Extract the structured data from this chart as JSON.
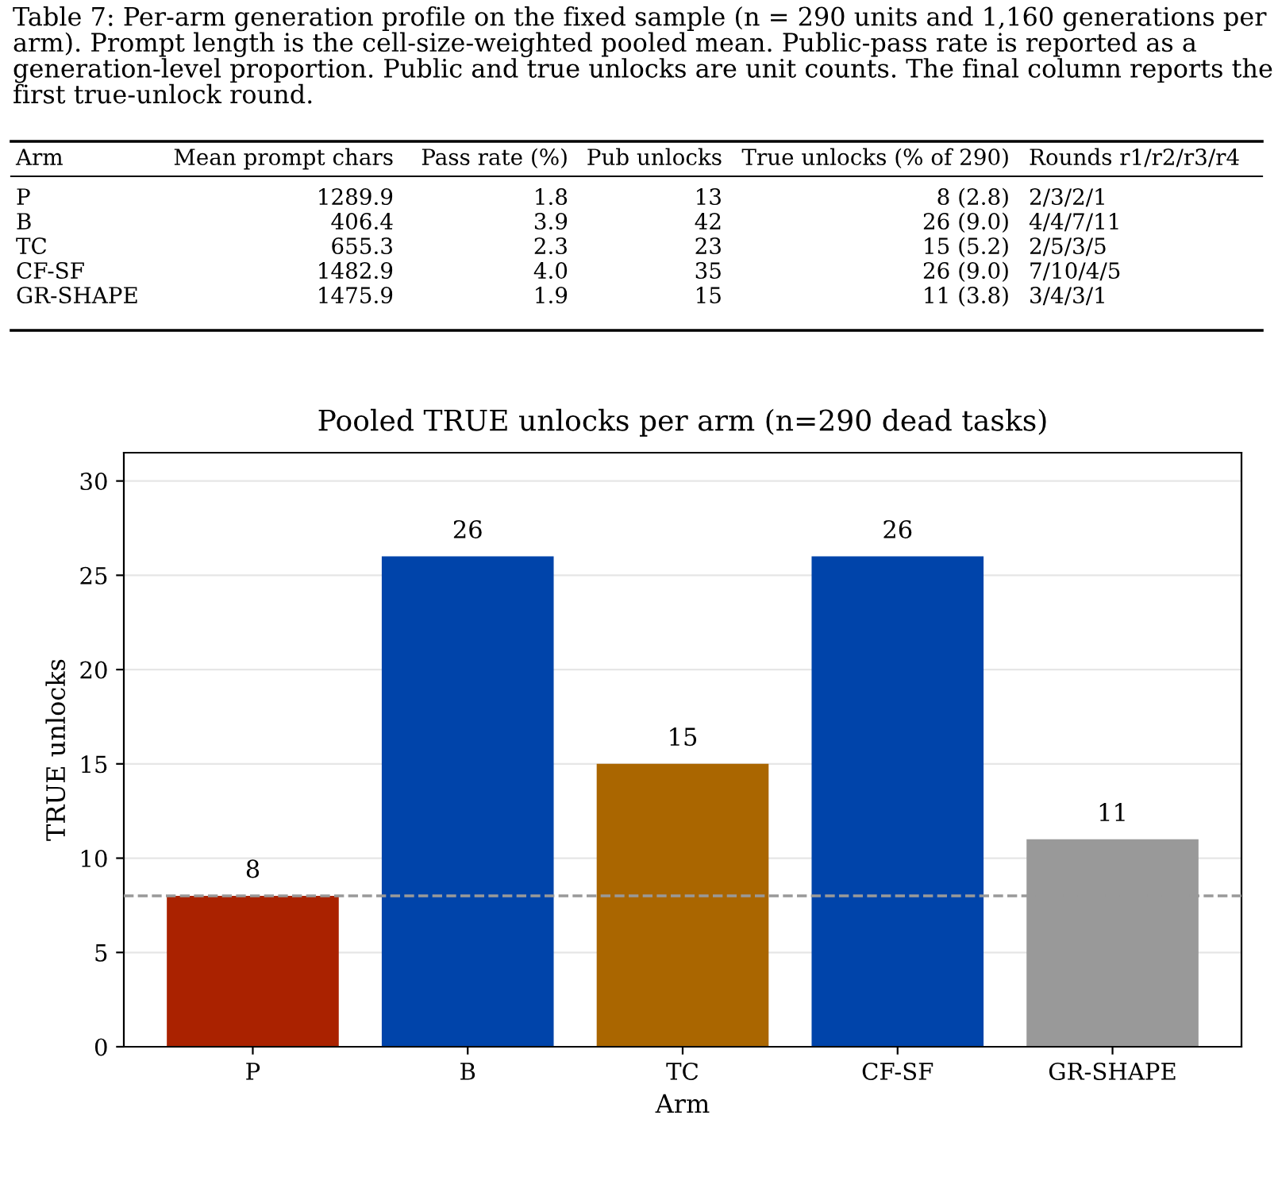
{
  "chart_data": [
    {
      "type": "other",
      "title": "Table 7: Per-arm generation profile on the fixed sample (n = 290 units and 1,160 generations per arm). Prompt length is the cell-size-weighted pooled mean. Public-pass rate is reported as a generation-level proportion. Public and true unlocks are unit counts. The final column reports the first true-unlock round.",
      "categories": [
        "Arm",
        "Mean prompt chars",
        "Pass rate (%)",
        "Pub unlocks",
        "True unlocks (% of 290)",
        "Rounds r1/r2/r3/r4"
      ],
      "cell_labels": [
        [
          "P",
          "1289.9",
          "1.8",
          "13",
          "8 (2.8)",
          "2/3/2/1"
        ],
        [
          "B",
          "406.4",
          "3.9",
          "42",
          "26 (9.0)",
          "4/4/7/11"
        ],
        [
          "TC",
          "655.3",
          "2.3",
          "23",
          "15 (5.2)",
          "2/5/3/5"
        ],
        [
          "CF-SF",
          "1482.9",
          "4.0",
          "35",
          "26 (9.0)",
          "7/10/4/5"
        ],
        [
          "GR-SHAPE",
          "1475.9",
          "1.9",
          "15",
          "11 (3.8)",
          "3/4/3/1"
        ]
      ]
    },
    {
      "type": "bar",
      "title": "Pooled TRUE unlocks per arm (n=290 dead tasks)",
      "xlabel": "Arm",
      "ylabel": "TRUE unlocks",
      "categories": [
        "P",
        "B",
        "TC",
        "CF-SF",
        "GR-SHAPE"
      ],
      "values": [
        8,
        26,
        15,
        26,
        11
      ],
      "colors": [
        "#aa2200",
        "#0044aa",
        "#aa6600",
        "#0044aa",
        "#999999"
      ],
      "ylim": [
        0,
        31.5
      ],
      "yticks": [
        0,
        5,
        10,
        15,
        20,
        25,
        30
      ],
      "grid": "y",
      "data_labels": true,
      "ref_lines": [
        {
          "axis": "y",
          "value": 8,
          "color": "#999999",
          "line_style": "dashed"
        }
      ]
    }
  ]
}
